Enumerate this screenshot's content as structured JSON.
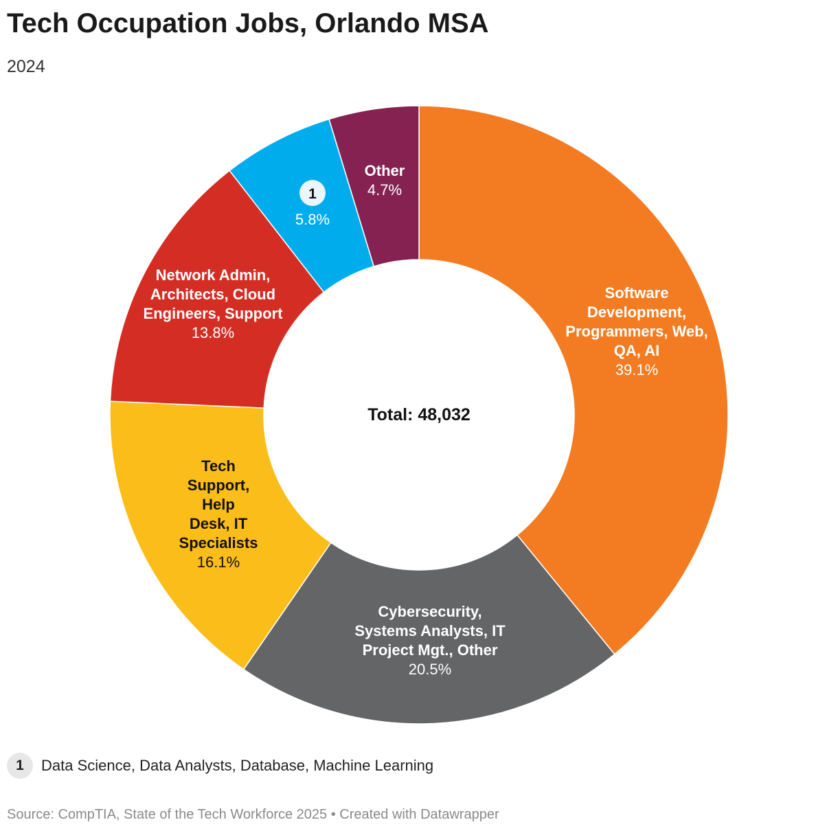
{
  "title": "Tech Occupation Jobs, Orlando MSA",
  "subtitle": "2024",
  "chart_data": {
    "type": "pie",
    "donut": true,
    "title": "Tech Occupation Jobs, Orlando MSA",
    "subtitle": "2024",
    "center_label": "Total: 48,032",
    "units": "%",
    "slices": [
      {
        "label": "Software Development, Programmers, Web, QA, AI",
        "label_lines": [
          "Software",
          "Development,",
          "Programmers, Web,",
          "QA, AI"
        ],
        "value": 39.1,
        "value_label": "39.1%",
        "color": "#f37c22",
        "text_color": "#ffffff"
      },
      {
        "label": "Cybersecurity, Systems Analysts, IT Project Mgt., Other",
        "label_lines": [
          "Cybersecurity,",
          "Systems Analysts, IT",
          "Project Mgt., Other"
        ],
        "value": 20.5,
        "value_label": "20.5%",
        "color": "#636566",
        "text_color": "#ffffff"
      },
      {
        "label": "Tech Support, Help Desk, IT Specialists",
        "label_lines": [
          "Tech",
          "Support,",
          "Help",
          "Desk, IT",
          "Specialists"
        ],
        "value": 16.1,
        "value_label": "16.1%",
        "color": "#fbbd19",
        "text_color": "#111111"
      },
      {
        "label": "Network Admin, Architects, Cloud Engineers, Support",
        "label_lines": [
          "Network Admin,",
          "Architects, Cloud",
          "Engineers, Support"
        ],
        "value": 13.8,
        "value_label": "13.8%",
        "color": "#d42e24",
        "text_color": "#ffffff"
      },
      {
        "label": "1",
        "marker": "1",
        "label_lines": [],
        "value": 5.8,
        "value_label": "5.8%",
        "color": "#01acec",
        "text_color": "#ffffff"
      },
      {
        "label": "Other",
        "label_lines": [
          "Other"
        ],
        "value": 4.7,
        "value_label": "4.7%",
        "color": "#852252",
        "text_color": "#ffffff"
      }
    ]
  },
  "footnote": {
    "marker": "1",
    "text": "Data Science, Data Analysts, Database, Machine Learning"
  },
  "source": "Source: CompTIA, State of the Tech Workforce 2025 • Created with Datawrapper"
}
